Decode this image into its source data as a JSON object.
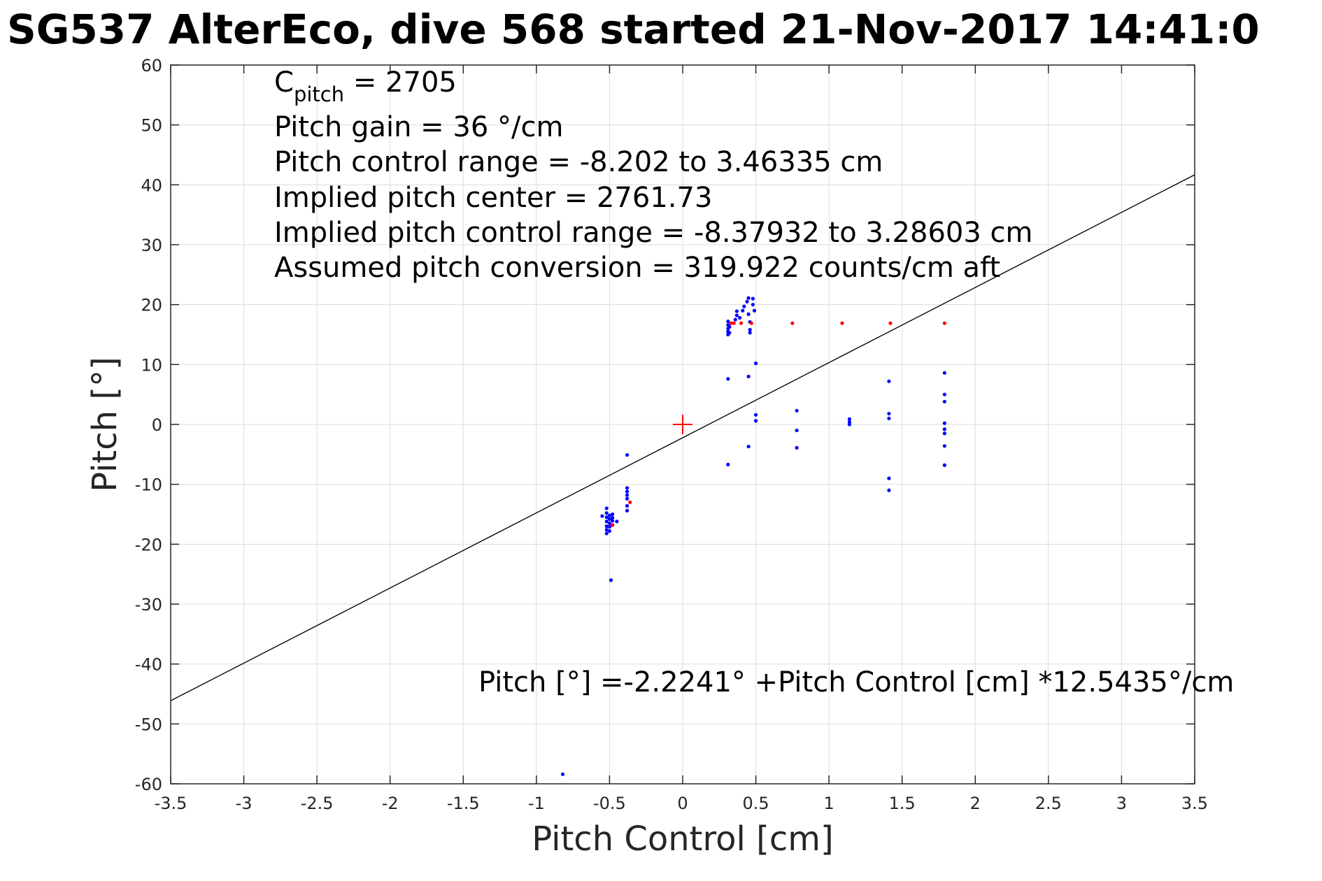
{
  "chart_data": {
    "type": "scatter",
    "title": "SG537 AlterEco, dive 568 started 21-Nov-2017 14:41:0",
    "xlabel": "Pitch Control [cm]",
    "ylabel": "Pitch [°]",
    "xlim": [
      -3.5,
      3.5
    ],
    "ylim": [
      -60,
      60
    ],
    "x_ticks": [
      "-3.5",
      "-3",
      "-2.5",
      "-2",
      "-1.5",
      "-1",
      "-0.5",
      "0",
      "0.5",
      "1",
      "1.5",
      "2",
      "2.5",
      "3",
      "3.5"
    ],
    "y_ticks": [
      "60",
      "50",
      "40",
      "30",
      "20",
      "10",
      "0",
      "-10",
      "-20",
      "-30",
      "-40",
      "-50",
      "-60"
    ],
    "grid": true,
    "colors": {
      "blue": "#0000ff",
      "red": "#ff0000",
      "fit_line": "#000000"
    },
    "annotations": {
      "c_pitch_main": "C",
      "c_pitch_sub": "pitch",
      "c_pitch_value": " = 2705",
      "pitch_gain": "Pitch gain = 36 °/cm",
      "pitch_control_range": "Pitch control range = -8.202 to 3.46335 cm",
      "implied_center": "Implied pitch center = 2761.73",
      "implied_range": "Implied pitch control range = -8.37932 to 3.28603 cm",
      "assumed_conversion": "Assumed pitch conversion = 319.922 counts/cm aft",
      "fit_equation": "Pitch [°] =-2.2241° +Pitch Control [cm] *12.5435°/cm"
    },
    "fit_line": {
      "intercept": -2.2241,
      "slope": 12.5435
    },
    "center_marker": {
      "x": 0,
      "y": 0,
      "color": "#ff0000",
      "shape": "plus"
    },
    "series": [
      {
        "color": "#0000ff",
        "points": [
          [
            -0.55,
            -15.3
          ],
          [
            -0.52,
            -14.0
          ],
          [
            -0.52,
            -14.8
          ],
          [
            -0.52,
            -15.5
          ],
          [
            -0.52,
            -16.2
          ],
          [
            -0.52,
            -17.0
          ],
          [
            -0.52,
            -17.6
          ],
          [
            -0.52,
            -18.2
          ],
          [
            -0.5,
            -15.2
          ],
          [
            -0.5,
            -15.8
          ],
          [
            -0.5,
            -16.5
          ],
          [
            -0.5,
            -17.1
          ],
          [
            -0.5,
            -17.8
          ],
          [
            -0.48,
            -15.0
          ],
          [
            -0.48,
            -15.6
          ],
          [
            -0.48,
            -16.1
          ],
          [
            -0.48,
            -16.8
          ],
          [
            -0.45,
            -16.2
          ],
          [
            -0.49,
            -26.0
          ],
          [
            -0.38,
            -5.1
          ],
          [
            -0.38,
            -10.6
          ],
          [
            -0.38,
            -11.2
          ],
          [
            -0.38,
            -11.8
          ],
          [
            -0.38,
            -12.4
          ],
          [
            -0.38,
            -13.6
          ],
          [
            -0.38,
            -14.4
          ],
          [
            0.31,
            15.0
          ],
          [
            0.31,
            15.5
          ],
          [
            0.31,
            16.0
          ],
          [
            0.31,
            16.6
          ],
          [
            0.31,
            17.2
          ],
          [
            0.32,
            15.3
          ],
          [
            0.32,
            16.3
          ],
          [
            0.36,
            17.5
          ],
          [
            0.37,
            18.2
          ],
          [
            0.37,
            18.9
          ],
          [
            0.39,
            17.8
          ],
          [
            0.41,
            19.0
          ],
          [
            0.42,
            19.7
          ],
          [
            0.44,
            20.5
          ],
          [
            0.45,
            21.1
          ],
          [
            0.45,
            18.4
          ],
          [
            0.46,
            17.1
          ],
          [
            0.46,
            15.8
          ],
          [
            0.46,
            15.3
          ],
          [
            0.48,
            20.0
          ],
          [
            0.48,
            21.0
          ],
          [
            0.49,
            19.0
          ],
          [
            0.31,
            7.6
          ],
          [
            0.45,
            8.0
          ],
          [
            0.5,
            10.2
          ],
          [
            0.5,
            1.6
          ],
          [
            0.5,
            0.6
          ],
          [
            0.45,
            -3.7
          ],
          [
            0.31,
            -6.7
          ],
          [
            0.78,
            2.3
          ],
          [
            0.78,
            -1.0
          ],
          [
            0.78,
            -3.9
          ],
          [
            1.14,
            0.9
          ],
          [
            1.14,
            0.4
          ],
          [
            1.14,
            0.0
          ],
          [
            1.41,
            7.2
          ],
          [
            1.41,
            1.8
          ],
          [
            1.41,
            1.0
          ],
          [
            1.41,
            -9.0
          ],
          [
            1.41,
            -11.0
          ],
          [
            1.79,
            8.6
          ],
          [
            1.79,
            5.0
          ],
          [
            1.79,
            3.8
          ],
          [
            1.79,
            0.2
          ],
          [
            1.79,
            -0.8
          ],
          [
            1.79,
            -1.5
          ],
          [
            1.79,
            -3.6
          ],
          [
            1.79,
            -6.8
          ],
          [
            -0.82,
            -58.4
          ]
        ]
      },
      {
        "color": "#ff0000",
        "points": [
          [
            -0.48,
            -16.8
          ],
          [
            -0.36,
            -13.0
          ],
          [
            0.33,
            16.9
          ],
          [
            0.35,
            16.9
          ],
          [
            0.4,
            16.9
          ],
          [
            0.47,
            16.9
          ],
          [
            0.75,
            16.9
          ],
          [
            1.09,
            16.9
          ],
          [
            1.42,
            16.9
          ],
          [
            1.79,
            16.9
          ]
        ]
      }
    ]
  }
}
